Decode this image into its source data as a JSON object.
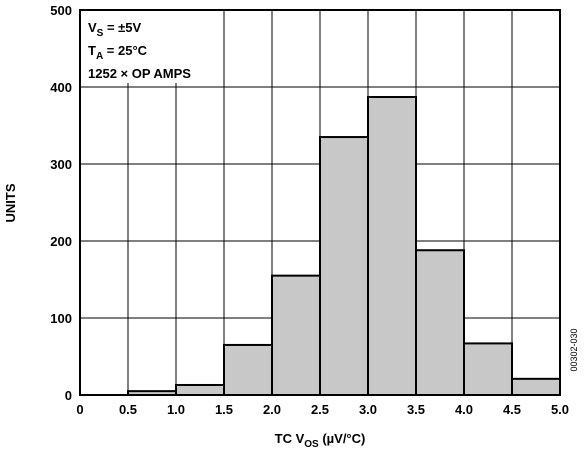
{
  "chart_data": {
    "type": "histogram",
    "bins": [
      0,
      0.5,
      1,
      1.5,
      2,
      2.5,
      3,
      3.5,
      4,
      4.5,
      5
    ],
    "values": [
      0,
      5,
      13,
      65,
      155,
      335,
      387,
      188,
      67,
      21
    ],
    "color": "#c8c8c8",
    "xlim": [
      0,
      5
    ],
    "ylim": [
      0,
      500
    ],
    "xticks": [
      0,
      0.5,
      {
        "value": 1,
        "label": "1.0"
      },
      1.5,
      {
        "value": 2,
        "label": "2.0"
      },
      2.5,
      {
        "value": 3,
        "label": "3.0"
      },
      3.5,
      {
        "value": 4,
        "label": "4.0"
      },
      4.5,
      {
        "value": 5,
        "label": "5.0"
      }
    ],
    "yticks": [
      0,
      100,
      200,
      300,
      400,
      500
    ],
    "grid": true,
    "x_label": {
      "main": "TC V",
      "sub": "OS",
      "tail": " (µV/°C)"
    },
    "y_label": "UNITS",
    "annotations": [
      {
        "main": "V",
        "sub": "S",
        "tail": " = ±5V"
      },
      {
        "main": "T",
        "sub": "A",
        "tail": " = 25°C"
      },
      {
        "main": "1252 × OP AMPS"
      }
    ],
    "figure_id": "00302-030"
  }
}
